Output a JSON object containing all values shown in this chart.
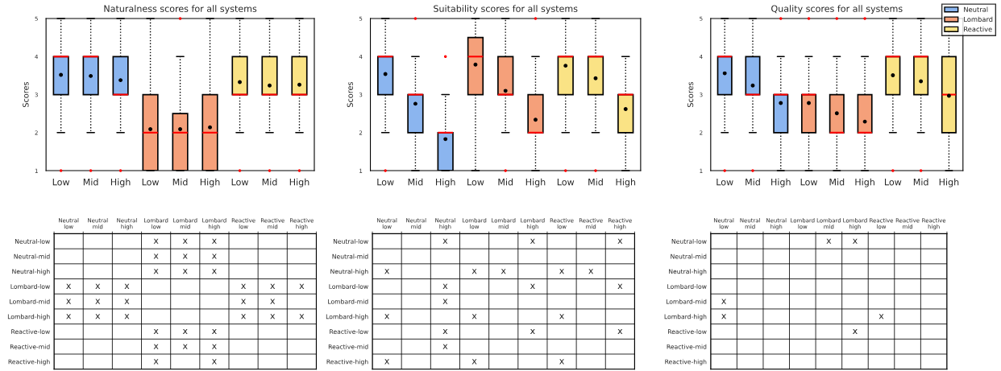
{
  "chart_data": [
    {
      "type": "box",
      "title": "Naturalness scores for all systems",
      "ylabel": "Scores",
      "categories": [
        "Low",
        "Mid",
        "High",
        "Low",
        "Mid",
        "High",
        "Low",
        "Mid",
        "High"
      ],
      "ylim": [
        1,
        5
      ],
      "yticks": [
        1,
        2,
        3,
        4,
        5
      ],
      "grid": false,
      "series": [
        {
          "color": "#8bb5ef",
          "boxes": [
            {
              "low": 2,
              "q1": 3,
              "median": 4,
              "q3": 4,
              "high": 5,
              "mean": 3.52,
              "outliers": [
                1
              ]
            },
            {
              "low": 2,
              "q1": 3,
              "median": 4,
              "q3": 4,
              "high": 5,
              "mean": 3.49,
              "outliers": [
                1
              ]
            },
            {
              "low": 2,
              "q1": 3,
              "median": 3,
              "q3": 4,
              "high": 5,
              "mean": 3.38,
              "outliers": [
                1
              ]
            },
            null,
            null,
            null,
            null,
            null,
            null
          ]
        },
        {
          "color": "#f5a07a",
          "boxes": [
            null,
            null,
            null,
            {
              "low": 1,
              "q1": 1,
              "median": 2,
              "q3": 3,
              "high": 5,
              "mean": 2.09
            },
            {
              "low": 1,
              "q1": 1,
              "median": 2,
              "q3": 2.5,
              "high": 4,
              "mean": 2.09,
              "outliers": [
                5
              ]
            },
            {
              "low": 1,
              "q1": 1,
              "median": 2,
              "q3": 3,
              "high": 5,
              "mean": 2.14
            },
            null,
            null,
            null
          ]
        },
        {
          "color": "#fae385",
          "boxes": [
            null,
            null,
            null,
            null,
            null,
            null,
            {
              "low": 2,
              "q1": 3,
              "median": 3,
              "q3": 4,
              "high": 5,
              "mean": 3.33,
              "outliers": [
                1
              ]
            },
            {
              "low": 2,
              "q1": 3,
              "median": 3,
              "q3": 4,
              "high": 5,
              "mean": 3.24,
              "outliers": [
                1
              ]
            },
            {
              "low": 2,
              "q1": 3,
              "median": 3,
              "q3": 4,
              "high": 5,
              "mean": 3.26,
              "outliers": [
                1
              ]
            }
          ]
        }
      ]
    },
    {
      "type": "box",
      "title": "Suitability scores for all systems",
      "ylabel": "Scores",
      "categories": [
        "Low",
        "Mid",
        "High",
        "Low",
        "Mid",
        "High",
        "Low",
        "Mid",
        "High"
      ],
      "ylim": [
        1,
        5
      ],
      "yticks": [
        1,
        2,
        3,
        4,
        5
      ],
      "grid": false,
      "series": [
        {
          "color": "#8bb5ef",
          "boxes": [
            {
              "low": 2,
              "q1": 3,
              "median": 4,
              "q3": 4,
              "high": 5,
              "mean": 3.54,
              "outliers": [
                1
              ]
            },
            {
              "low": 1,
              "q1": 2,
              "median": 3,
              "q3": 3,
              "high": 4,
              "mean": 2.76,
              "outliers": [
                5
              ]
            },
            {
              "low": 1,
              "q1": 1,
              "median": 2,
              "q3": 2,
              "high": 3,
              "mean": 1.83,
              "outliers": [
                4
              ]
            },
            null,
            null,
            null,
            null,
            null,
            null
          ]
        },
        {
          "color": "#f5a07a",
          "boxes": [
            null,
            null,
            null,
            {
              "low": 1,
              "q1": 3,
              "median": 4,
              "q3": 4.5,
              "high": 5,
              "mean": 3.79
            },
            {
              "low": 2,
              "q1": 3,
              "median": 3,
              "q3": 4,
              "high": 5,
              "mean": 3.1,
              "outliers": [
                1
              ]
            },
            {
              "low": 1,
              "q1": 2,
              "median": 2,
              "q3": 3,
              "high": 4,
              "mean": 2.34,
              "outliers": [
                5
              ]
            },
            null,
            null,
            null
          ]
        },
        {
          "color": "#fae385",
          "boxes": [
            null,
            null,
            null,
            null,
            null,
            null,
            {
              "low": 2,
              "q1": 3,
              "median": 4,
              "q3": 4,
              "high": 5,
              "mean": 3.76,
              "outliers": [
                1
              ]
            },
            {
              "low": 2,
              "q1": 3,
              "median": 4,
              "q3": 4,
              "high": 5,
              "mean": 3.43,
              "outliers": [
                1
              ]
            },
            {
              "low": 1,
              "q1": 2,
              "median": 3,
              "q3": 3,
              "high": 4,
              "mean": 2.62
            }
          ]
        }
      ]
    },
    {
      "type": "box",
      "title": "Quality scores for all systems",
      "ylabel": "Scores",
      "categories": [
        "Low",
        "Mid",
        "High",
        "Low",
        "Mid",
        "High",
        "Low",
        "Mid",
        "High"
      ],
      "ylim": [
        1,
        5
      ],
      "yticks": [
        1,
        2,
        3,
        4,
        5
      ],
      "legend": "top right",
      "grid": false,
      "series": [
        {
          "name": "Neutral",
          "color": "#8bb5ef",
          "boxes": [
            {
              "low": 2,
              "q1": 3,
              "median": 4,
              "q3": 4,
              "high": 5,
              "mean": 3.56,
              "outliers": [
                1
              ]
            },
            {
              "low": 2,
              "q1": 3,
              "median": 3,
              "q3": 4,
              "high": 5,
              "mean": 3.24,
              "outliers": [
                1
              ]
            },
            {
              "low": 1,
              "q1": 2,
              "median": 3,
              "q3": 3,
              "high": 4,
              "mean": 2.78,
              "outliers": [
                5
              ]
            },
            null,
            null,
            null,
            null,
            null,
            null
          ]
        },
        {
          "name": "Lombard",
          "color": "#f5a07a",
          "boxes": [
            null,
            null,
            null,
            {
              "low": 1,
              "q1": 2,
              "median": 3,
              "q3": 3,
              "high": 4,
              "mean": 2.78,
              "outliers": [
                5
              ]
            },
            {
              "low": 1,
              "q1": 2,
              "median": 2,
              "q3": 3,
              "high": 4,
              "mean": 2.51,
              "outliers": [
                5
              ]
            },
            {
              "low": 1,
              "q1": 2,
              "median": 2,
              "q3": 3,
              "high": 4,
              "mean": 2.29,
              "outliers": [
                5
              ]
            },
            null,
            null,
            null
          ]
        },
        {
          "name": "Reactive",
          "color": "#fae385",
          "boxes": [
            null,
            null,
            null,
            null,
            null,
            null,
            {
              "low": 2,
              "q1": 3,
              "median": 4,
              "q3": 4,
              "high": 5,
              "mean": 3.51,
              "outliers": [
                1
              ]
            },
            {
              "low": 2,
              "q1": 3,
              "median": 4,
              "q3": 4,
              "high": 5,
              "mean": 3.35,
              "outliers": [
                1
              ]
            },
            {
              "low": 1,
              "q1": 2,
              "median": 3,
              "q3": 4,
              "high": 5,
              "mean": 2.97
            }
          ]
        }
      ]
    },
    {
      "type": "heatmap",
      "grid": true,
      "categories": [
        "Neutral\nlow",
        "Neutral\nmid",
        "Neutral\nhigh",
        "Lombard\nlow",
        "Lombard\nmid",
        "Lombard\nhigh",
        "Reactive\nlow",
        "Reactive\nmid",
        "Reactive\nhigh"
      ],
      "y_categories": [
        "Neutral-low",
        "Neutral-mid",
        "Neutral-high",
        "Lombard-low",
        "Lombard-mid",
        "Lombard-high",
        "Reactive-low",
        "Reactive-mid",
        "Reactive-high"
      ],
      "cells": [
        [
          null,
          null,
          null,
          null,
          null,
          null,
          null,
          null,
          null
        ],
        [
          null,
          null,
          null,
          null,
          null,
          null,
          null,
          null,
          null
        ],
        [
          null,
          null,
          null,
          null,
          null,
          null,
          null,
          null,
          null
        ],
        [
          null,
          null,
          null,
          null,
          null,
          null,
          null,
          null,
          null
        ],
        [
          null,
          null,
          null,
          null,
          null,
          null,
          null,
          null,
          null
        ],
        [
          null,
          null,
          null,
          null,
          null,
          null,
          null,
          null,
          null
        ],
        [
          null,
          null,
          null,
          null,
          null,
          null,
          null,
          null,
          null
        ],
        [
          null,
          null,
          null,
          null,
          null,
          null,
          null,
          null,
          null
        ],
        [
          null,
          null,
          null,
          null,
          null,
          null,
          null,
          null,
          null
        ]
      ],
      "cell_labels": [
        [
          null,
          null,
          null,
          "x",
          "x",
          "x",
          null,
          null,
          null
        ],
        [
          null,
          null,
          null,
          "x",
          "x",
          "x",
          null,
          null,
          null
        ],
        [
          null,
          null,
          null,
          "x",
          "x",
          "x",
          null,
          null,
          null
        ],
        [
          "x",
          "x",
          "x",
          null,
          null,
          null,
          "x",
          "x",
          "x"
        ],
        [
          "x",
          "x",
          "x",
          null,
          null,
          null,
          "x",
          "x",
          null
        ],
        [
          "x",
          "x",
          "x",
          null,
          null,
          null,
          "x",
          "x",
          "x"
        ],
        [
          null,
          null,
          null,
          "x",
          "x",
          "x",
          null,
          null,
          null
        ],
        [
          null,
          null,
          null,
          "x",
          "x",
          "x",
          null,
          null,
          null
        ],
        [
          null,
          null,
          null,
          "x",
          null,
          "x",
          null,
          null,
          null
        ]
      ]
    },
    {
      "type": "heatmap",
      "grid": true,
      "categories": [
        "Neutral\nlow",
        "Neutral\nmid",
        "Neutral\nhigh",
        "Lombard\nlow",
        "Lombard\nmid",
        "Lombard\nhigh",
        "Reactive\nlow",
        "Reactive\nmid",
        "Reactive\nhigh"
      ],
      "y_categories": [
        "Neutral-low",
        "Neutral-mid",
        "Neutral-high",
        "Lombard-low",
        "Lombard-mid",
        "Lombard-high",
        "Reactive-low",
        "Reactive-mid",
        "Reactive-high"
      ],
      "cells": [
        [
          null,
          null,
          null,
          null,
          null,
          null,
          null,
          null,
          null
        ],
        [
          null,
          null,
          null,
          null,
          null,
          null,
          null,
          null,
          null
        ],
        [
          null,
          null,
          null,
          null,
          null,
          null,
          null,
          null,
          null
        ],
        [
          null,
          null,
          null,
          null,
          null,
          null,
          null,
          null,
          null
        ],
        [
          null,
          null,
          null,
          null,
          null,
          null,
          null,
          null,
          null
        ],
        [
          null,
          null,
          null,
          null,
          null,
          null,
          null,
          null,
          null
        ],
        [
          null,
          null,
          null,
          null,
          null,
          null,
          null,
          null,
          null
        ],
        [
          null,
          null,
          null,
          null,
          null,
          null,
          null,
          null,
          null
        ],
        [
          null,
          null,
          null,
          null,
          null,
          null,
          null,
          null,
          null
        ]
      ],
      "cell_labels": [
        [
          null,
          null,
          "x",
          null,
          null,
          "x",
          null,
          null,
          "x"
        ],
        [
          null,
          null,
          null,
          null,
          null,
          null,
          null,
          null,
          null
        ],
        [
          "x",
          null,
          null,
          "x",
          "x",
          null,
          "x",
          "x",
          null
        ],
        [
          null,
          null,
          "x",
          null,
          null,
          "x",
          null,
          null,
          "x"
        ],
        [
          null,
          null,
          "x",
          null,
          null,
          null,
          null,
          null,
          null
        ],
        [
          "x",
          null,
          null,
          "x",
          null,
          null,
          "x",
          null,
          null
        ],
        [
          null,
          null,
          "x",
          null,
          null,
          "x",
          null,
          null,
          "x"
        ],
        [
          null,
          null,
          "x",
          null,
          null,
          null,
          null,
          null,
          null
        ],
        [
          "x",
          null,
          null,
          "x",
          null,
          null,
          "x",
          null,
          null
        ]
      ]
    },
    {
      "type": "heatmap",
      "grid": true,
      "categories": [
        "Neutral\nlow",
        "Neutral\nmid",
        "Neutral\nhigh",
        "Lombard\nlow",
        "Lombard\nmid",
        "Lombard\nhigh",
        "Reactive\nlow",
        "Reactive\nmid",
        "Reactive\nhigh"
      ],
      "y_categories": [
        "Neutral-low",
        "Neutral-mid",
        "Neutral-high",
        "Lombard-low",
        "Lombard-mid",
        "Lombard-high",
        "Reactive-low",
        "Reactive-mid",
        "Reactive-high"
      ],
      "cells": [
        [
          null,
          null,
          null,
          null,
          null,
          null,
          null,
          null,
          null
        ],
        [
          null,
          null,
          null,
          null,
          null,
          null,
          null,
          null,
          null
        ],
        [
          null,
          null,
          null,
          null,
          null,
          null,
          null,
          null,
          null
        ],
        [
          null,
          null,
          null,
          null,
          null,
          null,
          null,
          null,
          null
        ],
        [
          null,
          null,
          null,
          null,
          null,
          null,
          null,
          null,
          null
        ],
        [
          null,
          null,
          null,
          null,
          null,
          null,
          null,
          null,
          null
        ],
        [
          null,
          null,
          null,
          null,
          null,
          null,
          null,
          null,
          null
        ],
        [
          null,
          null,
          null,
          null,
          null,
          null,
          null,
          null,
          null
        ],
        [
          null,
          null,
          null,
          null,
          null,
          null,
          null,
          null,
          null
        ]
      ],
      "cell_labels": [
        [
          null,
          null,
          null,
          null,
          "x",
          "x",
          null,
          null,
          null
        ],
        [
          null,
          null,
          null,
          null,
          null,
          null,
          null,
          null,
          null
        ],
        [
          null,
          null,
          null,
          null,
          null,
          null,
          null,
          null,
          null
        ],
        [
          null,
          null,
          null,
          null,
          null,
          null,
          null,
          null,
          null
        ],
        [
          "x",
          null,
          null,
          null,
          null,
          null,
          null,
          null,
          null
        ],
        [
          "x",
          null,
          null,
          null,
          null,
          null,
          "x",
          null,
          null
        ],
        [
          null,
          null,
          null,
          null,
          null,
          "x",
          null,
          null,
          null
        ],
        [
          null,
          null,
          null,
          null,
          null,
          null,
          null,
          null,
          null
        ],
        [
          null,
          null,
          null,
          null,
          null,
          null,
          null,
          null,
          null
        ]
      ]
    }
  ]
}
